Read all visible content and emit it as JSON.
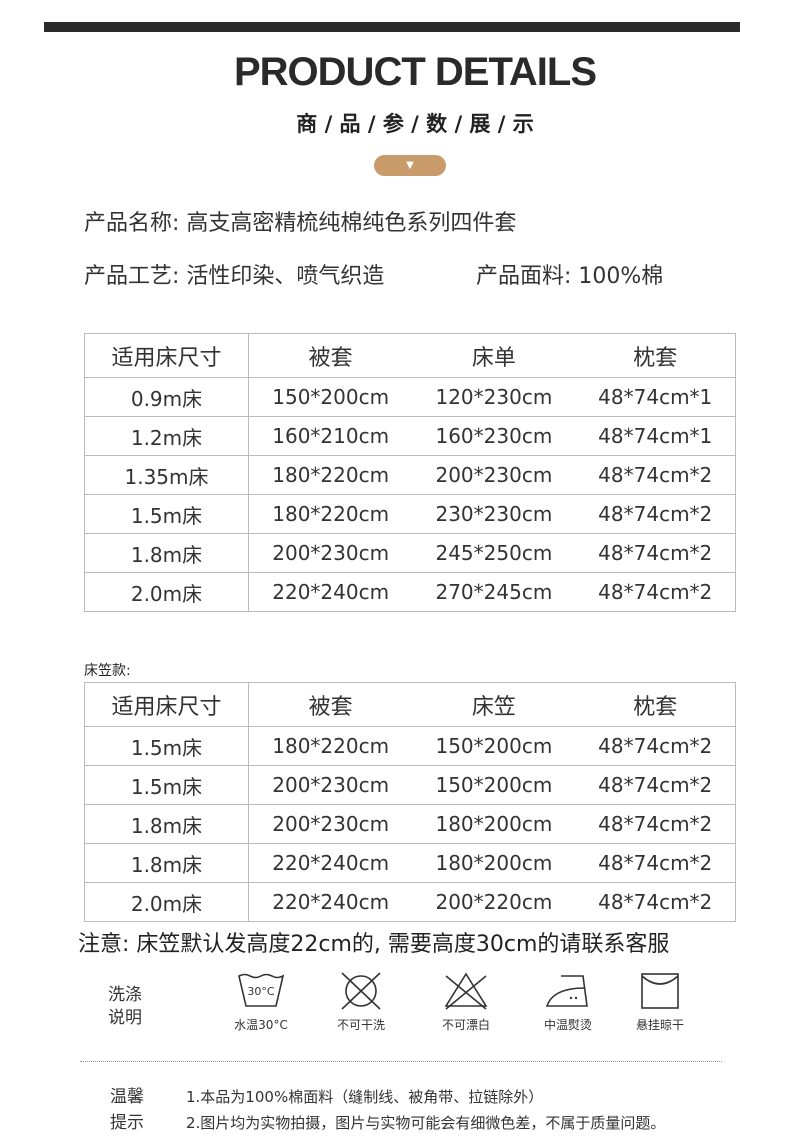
{
  "header": {
    "title": "PRODUCT DETAILS",
    "subtitle": "商 / 品 / 参 / 数 / 展 / 示",
    "arrow": "▼"
  },
  "info": {
    "name": "产品名称: 高支高密精梳纯棉纯色系列四件套",
    "craft": "产品工艺: 活性印染、喷气织造",
    "fabric": "产品面料: 100%棉"
  },
  "table1": {
    "headers": [
      "适用床尺寸",
      "被套",
      "床单",
      "枕套"
    ],
    "rows": [
      [
        "0.9m床",
        "150*200cm",
        "120*230cm",
        "48*74cm*1"
      ],
      [
        "1.2m床",
        "160*210cm",
        "160*230cm",
        "48*74cm*1"
      ],
      [
        "1.35m床",
        "180*220cm",
        "200*230cm",
        "48*74cm*2"
      ],
      [
        "1.5m床",
        "180*220cm",
        "230*230cm",
        "48*74cm*2"
      ],
      [
        "1.8m床",
        "200*230cm",
        "245*250cm",
        "48*74cm*2"
      ],
      [
        "2.0m床",
        "220*240cm",
        "270*245cm",
        "48*74cm*2"
      ]
    ]
  },
  "table2": {
    "label": "床笠款:",
    "headers": [
      "适用床尺寸",
      "被套",
      "床笠",
      "枕套"
    ],
    "rows": [
      [
        "1.5m床",
        "180*220cm",
        "150*200cm",
        "48*74cm*2"
      ],
      [
        "1.5m床",
        "200*230cm",
        "150*200cm",
        "48*74cm*2"
      ],
      [
        "1.8m床",
        "200*230cm",
        "180*200cm",
        "48*74cm*2"
      ],
      [
        "1.8m床",
        "220*240cm",
        "180*200cm",
        "48*74cm*2"
      ],
      [
        "2.0m床",
        "220*240cm",
        "200*220cm",
        "48*74cm*2"
      ]
    ]
  },
  "notice": "注意: 床笠默认发高度22cm的, 需要高度30cm的请联系客服",
  "wash": {
    "label_line1": "洗涤",
    "label_line2": "说明",
    "temp_text": "30°C",
    "icons": [
      {
        "name": "wash-30-icon",
        "label": "水温30°C"
      },
      {
        "name": "no-dry-clean-icon",
        "label": "不可干洗"
      },
      {
        "name": "no-bleach-icon",
        "label": "不可漂白"
      },
      {
        "name": "iron-medium-icon",
        "label": "中温熨烫"
      },
      {
        "name": "hang-dry-icon",
        "label": "悬挂晾干"
      }
    ]
  },
  "tips": {
    "label_line1": "温馨",
    "label_line2": "提示",
    "lines": [
      "1.本品为100%棉面料（缝制线、被角带、拉链除外）",
      "2.图片均为实物拍摄，图片与实物可能会有细微色差，不属于质量问题。"
    ]
  },
  "colors": {
    "accent": "#c99a6a",
    "bar": "#2b2b2b"
  }
}
